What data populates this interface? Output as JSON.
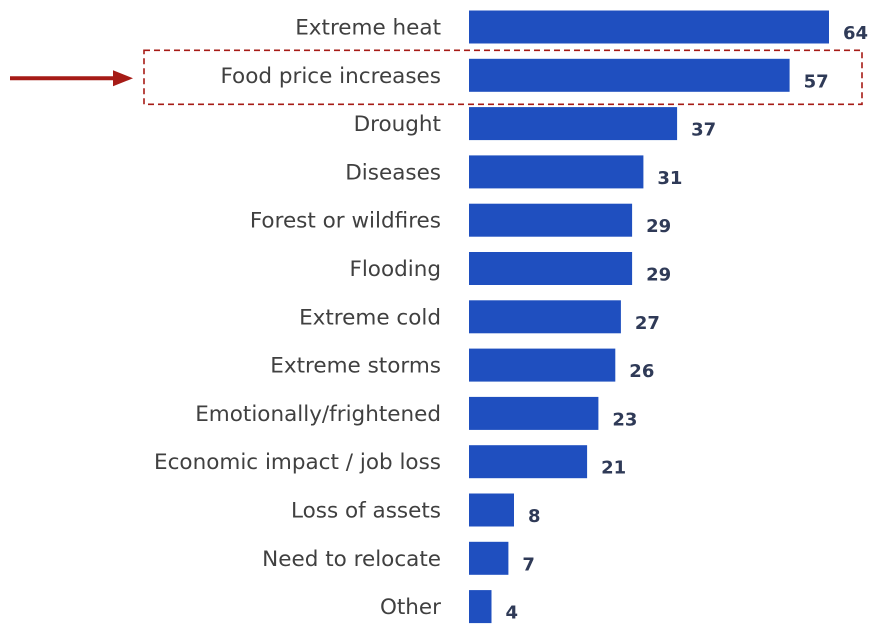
{
  "chart_data": {
    "type": "bar",
    "orientation": "horizontal",
    "categories": [
      "Extreme heat",
      "Food price increases",
      "Drought",
      "Diseases",
      "Forest or wildfires",
      "Flooding",
      "Extreme cold",
      "Extreme storms",
      "Emotionally/frightened",
      "Economic impact / job loss",
      "Loss of assets",
      "Need to relocate",
      "Other"
    ],
    "values": [
      64,
      57,
      37,
      31,
      29,
      29,
      27,
      26,
      23,
      21,
      8,
      7,
      4
    ],
    "xlim": [
      0,
      64
    ],
    "grid": false,
    "legend": "none",
    "highlight": {
      "category": "Food price increases",
      "style": "dashed box with arrow"
    },
    "colors": {
      "bar": "#1f4fbf",
      "highlight": "#a61b16",
      "value_text": "#2f3a57",
      "label_text": "#404040"
    }
  }
}
